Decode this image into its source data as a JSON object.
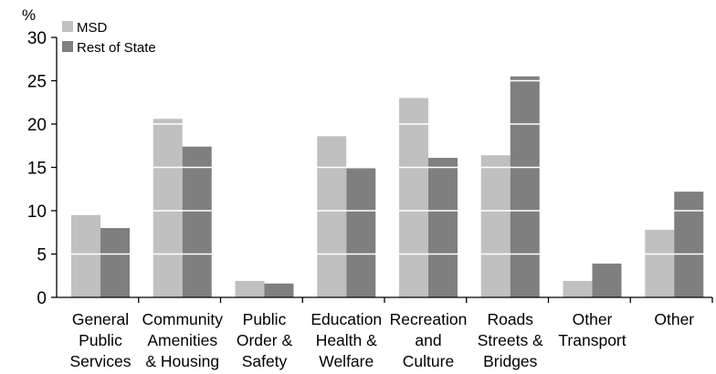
{
  "chart_data": {
    "type": "bar",
    "title": "",
    "ylabel": "%",
    "xlabel": "",
    "ylim": [
      0,
      30
    ],
    "yticks": [
      0,
      5,
      10,
      15,
      20,
      25,
      30
    ],
    "gridlines": "white lines across bars",
    "legend_position": "top-left",
    "categories": [
      [
        "General",
        "Public",
        "Services"
      ],
      [
        "Community",
        "Amenities",
        "& Housing"
      ],
      [
        "Public",
        "Order &",
        "Safety"
      ],
      [
        "Education",
        "Health &",
        "Welfare"
      ],
      [
        "Recreation",
        "and",
        "Culture"
      ],
      [
        "Roads",
        "Streets &",
        "Bridges"
      ],
      [
        "Other",
        "Transport"
      ],
      [
        "Other"
      ]
    ],
    "series": [
      {
        "name": "MSD",
        "color": "#c0c0c0",
        "values": [
          9.5,
          20.6,
          1.9,
          18.6,
          23.0,
          16.4,
          1.9,
          7.8
        ]
      },
      {
        "name": "Rest of State",
        "color": "#7f7f7f",
        "values": [
          8.0,
          17.4,
          1.6,
          14.9,
          16.1,
          25.5,
          3.9,
          12.2
        ]
      }
    ]
  }
}
